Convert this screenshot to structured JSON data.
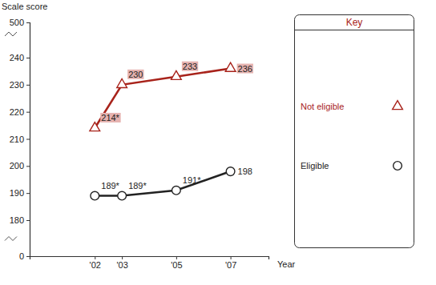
{
  "chart_data": {
    "type": "line",
    "y_label": "Scale score",
    "x_label": "Year",
    "legend_title": "Key",
    "legend": "right",
    "x": [
      2002,
      2003,
      2005,
      2007
    ],
    "xlim": [
      1999.6,
      2008.4
    ],
    "xticks": [
      {
        "value": 2002,
        "label": "'02"
      },
      {
        "value": 2003,
        "label": "'03"
      },
      {
        "value": 2005,
        "label": "'05"
      },
      {
        "value": 2007,
        "label": "'07"
      }
    ],
    "ylim": [
      0,
      500
    ],
    "yticks": [
      0,
      180,
      190,
      200,
      210,
      220,
      230,
      240,
      500
    ],
    "data_labels": true,
    "series": [
      {
        "name": "Not eligible",
        "color": "#a8231b",
        "marker": "triangle",
        "values": [
          214,
          230,
          233,
          236
        ],
        "value_labels": [
          "214*",
          "230",
          "233",
          "236"
        ]
      },
      {
        "name": "Eligible",
        "color": "#222222",
        "marker": "circle",
        "values": [
          189,
          189,
          191,
          198
        ],
        "value_labels": [
          "189*",
          "189*",
          "191*",
          "198"
        ]
      }
    ]
  }
}
